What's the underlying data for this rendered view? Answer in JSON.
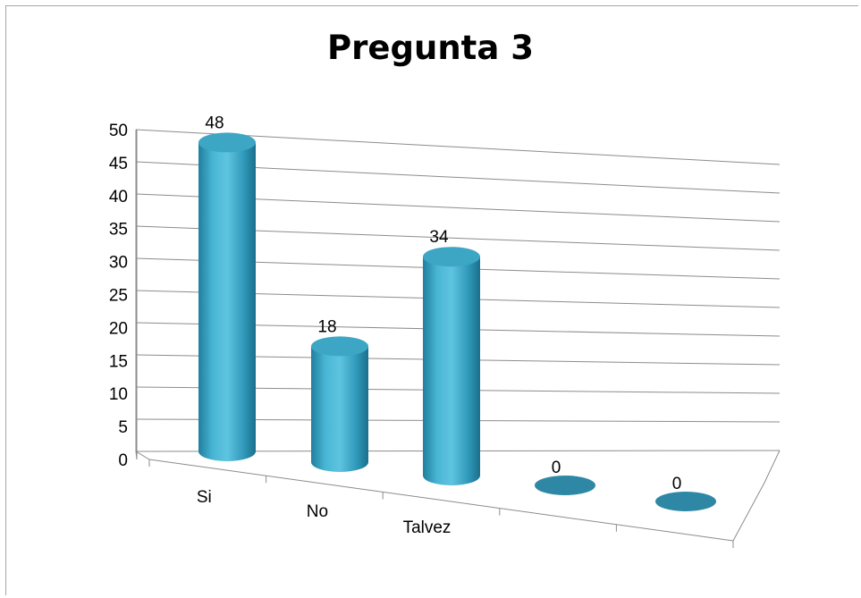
{
  "chart_data": {
    "type": "bar",
    "title": "Pregunta 3",
    "categories": [
      "Si",
      "No",
      "Talvez",
      "",
      ""
    ],
    "values": [
      48,
      18,
      34,
      0,
      0
    ],
    "data_labels": [
      "48",
      "18",
      "34",
      "0",
      "0"
    ],
    "ylim": [
      0,
      50
    ],
    "yticks": [
      "0",
      "5",
      "10",
      "15",
      "20",
      "25",
      "30",
      "35",
      "40",
      "45",
      "50"
    ],
    "grid": true,
    "style": "3d-cylinder",
    "bar_color": "#3fa9c6"
  }
}
